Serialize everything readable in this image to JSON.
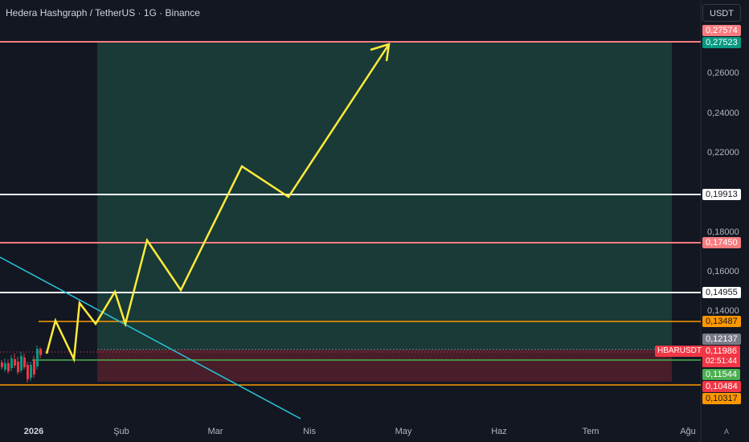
{
  "header": {
    "title": "Hedera Hashgraph / TetherUS · 1G · Binance",
    "currency": "USDT"
  },
  "yaxis": {
    "ticks": [
      "0,26000",
      "0,24000",
      "0,22000",
      "0,18000",
      "0,16000",
      "0,14000"
    ]
  },
  "xaxis": {
    "ticks": [
      "2026",
      "Şub",
      "Mar",
      "Nis",
      "May",
      "Haz",
      "Tem",
      "Ağu"
    ]
  },
  "price_labels": [
    {
      "id": "price-label-027574",
      "text": "0,27574",
      "bg": "#f77c80",
      "fg": "#ffffff"
    },
    {
      "id": "price-label-027523",
      "text": "0,27523",
      "bg": "#089981",
      "fg": "#ffffff"
    },
    {
      "id": "price-label-019913",
      "text": "0,19913",
      "bg": "#ffffff",
      "fg": "#131722"
    },
    {
      "id": "price-label-017450",
      "text": "0,17450",
      "bg": "#f77c80",
      "fg": "#ffffff"
    },
    {
      "id": "price-label-014955",
      "text": "0,14955",
      "bg": "#ffffff",
      "fg": "#131722"
    },
    {
      "id": "price-label-013487",
      "text": "0,13487",
      "bg": "#ff9800",
      "fg": "#131722"
    },
    {
      "id": "price-label-012137",
      "text": "0,12137",
      "bg": "#787b86",
      "fg": "#ffffff"
    },
    {
      "id": "price-label-011986",
      "text": "0,11986",
      "bg": "#f23645",
      "fg": "#ffffff"
    },
    {
      "id": "price-label-011544",
      "text": "0,11544",
      "bg": "#4caf50",
      "fg": "#ffffff"
    },
    {
      "id": "price-label-010484",
      "text": "0,10484",
      "bg": "#f23645",
      "fg": "#ffffff"
    },
    {
      "id": "price-label-010317",
      "text": "0,10317",
      "bg": "#ff9800",
      "fg": "#131722"
    }
  ],
  "symbol_badge": "HBARUSDT",
  "countdown": "02:51:44",
  "autoscale_label": "A",
  "colors": {
    "background": "#131722",
    "target_zone": "#1b3e3a",
    "stop_zone": "#4a1f2a",
    "projection": "#ffeb3b",
    "trendline": "#26c6da",
    "resistance_pink": "#f77c80",
    "level_white": "#ffffff",
    "level_orange": "#ff9800",
    "level_green": "#4caf50"
  }
}
